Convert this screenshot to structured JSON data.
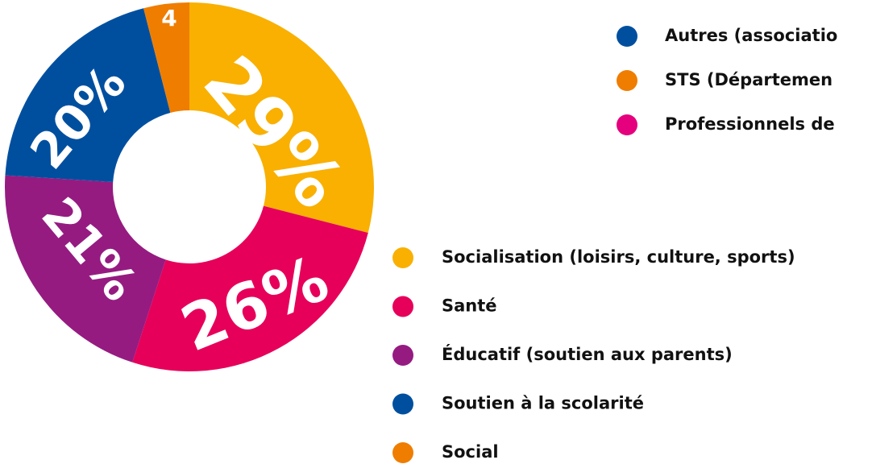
{
  "chart_data": {
    "type": "pie",
    "categories": [
      "Socialisation (loisirs, culture, sports)",
      "Santé",
      "Éducatif (soutien aux parents)",
      "Soutien à la scolarité",
      "Social"
    ],
    "values": [
      29,
      26,
      21,
      20,
      4
    ],
    "value_labels": [
      "29%",
      "26%",
      "21%",
      "20%",
      "4"
    ],
    "colors": [
      "#f9b000",
      "#e6005a",
      "#951b81",
      "#004f9f",
      "#ef7d00"
    ],
    "donut": true,
    "other_legend": [
      {
        "name": "Autres (associatio",
        "color": "#004f9f"
      },
      {
        "name": "STS (Départemen",
        "color": "#ef7d00"
      },
      {
        "name": "Professionnels de",
        "color": "#e5007d"
      }
    ]
  }
}
